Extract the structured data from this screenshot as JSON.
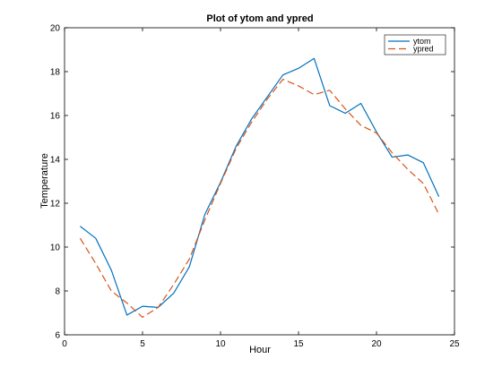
{
  "chart_data": {
    "type": "line",
    "title": "Plot of ytom and ypred",
    "xlabel": "Hour",
    "ylabel": "Temperature",
    "xlim": [
      0,
      25
    ],
    "ylim": [
      6,
      20
    ],
    "xticks": [
      0,
      5,
      10,
      15,
      20,
      25
    ],
    "yticks": [
      6,
      8,
      10,
      12,
      14,
      16,
      18,
      20
    ],
    "grid": false,
    "legend_position": "top-right",
    "x": [
      1,
      2,
      3,
      4,
      5,
      6,
      7,
      8,
      9,
      10,
      11,
      12,
      13,
      14,
      15,
      16,
      17,
      18,
      19,
      20,
      21,
      22,
      23,
      24
    ],
    "series": [
      {
        "name": "ytom",
        "color": "#0072bd",
        "style": "solid",
        "values": [
          10.95,
          10.4,
          8.95,
          6.9,
          7.3,
          7.25,
          7.9,
          9.1,
          11.5,
          12.95,
          14.6,
          15.85,
          16.85,
          17.85,
          18.15,
          18.6,
          16.45,
          16.1,
          16.55,
          15.25,
          14.1,
          14.2,
          13.85,
          12.3
        ]
      },
      {
        "name": "ypred",
        "color": "#d95319",
        "style": "dashed",
        "values": [
          10.4,
          9.25,
          8.0,
          7.45,
          6.8,
          7.25,
          8.3,
          9.45,
          11.25,
          12.9,
          14.5,
          15.7,
          16.75,
          17.65,
          17.35,
          16.95,
          17.15,
          16.3,
          15.55,
          15.2,
          14.3,
          13.55,
          12.9,
          11.5
        ]
      }
    ]
  }
}
